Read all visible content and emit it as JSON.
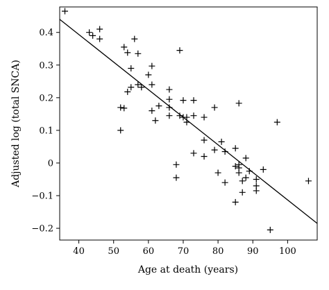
{
  "chart_data": {
    "type": "scatter",
    "title": "",
    "xlabel": "Age at death (years)",
    "ylabel": "Adjusted log (total SNCA)",
    "xlim": [
      34.5,
      108.5
    ],
    "ylim": [
      -0.236,
      0.478
    ],
    "x_ticks": [
      40,
      50,
      60,
      70,
      80,
      90,
      100
    ],
    "y_ticks": [
      -0.2,
      -0.1,
      0,
      0.1,
      0.2,
      0.3,
      0.4
    ],
    "y_tick_labels": [
      "−0.2",
      "−0.1",
      "0",
      "0.1",
      "0.2",
      "0.3",
      "0.4"
    ],
    "marker": "plus",
    "grid": false,
    "points": [
      {
        "x": 36,
        "y": 0.465
      },
      {
        "x": 43,
        "y": 0.4
      },
      {
        "x": 44,
        "y": 0.39
      },
      {
        "x": 46,
        "y": 0.41
      },
      {
        "x": 46,
        "y": 0.38
      },
      {
        "x": 52,
        "y": 0.17
      },
      {
        "x": 52,
        "y": 0.1
      },
      {
        "x": 53,
        "y": 0.355
      },
      {
        "x": 53,
        "y": 0.168
      },
      {
        "x": 54,
        "y": 0.338
      },
      {
        "x": 54,
        "y": 0.218
      },
      {
        "x": 55,
        "y": 0.29
      },
      {
        "x": 55,
        "y": 0.232
      },
      {
        "x": 56,
        "y": 0.38
      },
      {
        "x": 57,
        "y": 0.335
      },
      {
        "x": 57,
        "y": 0.24
      },
      {
        "x": 58,
        "y": 0.232
      },
      {
        "x": 60,
        "y": 0.27
      },
      {
        "x": 61,
        "y": 0.297
      },
      {
        "x": 61,
        "y": 0.24
      },
      {
        "x": 61,
        "y": 0.16
      },
      {
        "x": 62,
        "y": 0.13
      },
      {
        "x": 63,
        "y": 0.175
      },
      {
        "x": 66,
        "y": 0.225
      },
      {
        "x": 66,
        "y": 0.195
      },
      {
        "x": 66,
        "y": 0.17
      },
      {
        "x": 66,
        "y": 0.145
      },
      {
        "x": 68,
        "y": -0.005
      },
      {
        "x": 68,
        "y": -0.045
      },
      {
        "x": 69,
        "y": 0.345
      },
      {
        "x": 69,
        "y": 0.145
      },
      {
        "x": 70,
        "y": 0.192
      },
      {
        "x": 70,
        "y": 0.14
      },
      {
        "x": 71,
        "y": 0.14
      },
      {
        "x": 71,
        "y": 0.125
      },
      {
        "x": 73,
        "y": 0.192
      },
      {
        "x": 73,
        "y": 0.145
      },
      {
        "x": 73,
        "y": 0.03
      },
      {
        "x": 76,
        "y": 0.14
      },
      {
        "x": 76,
        "y": 0.07
      },
      {
        "x": 76,
        "y": 0.02
      },
      {
        "x": 79,
        "y": 0.17
      },
      {
        "x": 79,
        "y": 0.04
      },
      {
        "x": 80,
        "y": -0.03
      },
      {
        "x": 81,
        "y": 0.065
      },
      {
        "x": 82,
        "y": 0.035
      },
      {
        "x": 82,
        "y": -0.06
      },
      {
        "x": 85,
        "y": 0.045
      },
      {
        "x": 85,
        "y": -0.01
      },
      {
        "x": 85,
        "y": -0.12
      },
      {
        "x": 86,
        "y": 0.183
      },
      {
        "x": 86,
        "y": -0.005
      },
      {
        "x": 86,
        "y": -0.015
      },
      {
        "x": 86,
        "y": -0.03
      },
      {
        "x": 87,
        "y": -0.055
      },
      {
        "x": 87,
        "y": -0.09
      },
      {
        "x": 88,
        "y": 0.015
      },
      {
        "x": 88,
        "y": -0.045
      },
      {
        "x": 89,
        "y": -0.025
      },
      {
        "x": 91,
        "y": -0.05
      },
      {
        "x": 91,
        "y": -0.07
      },
      {
        "x": 91,
        "y": -0.085
      },
      {
        "x": 93,
        "y": -0.02
      },
      {
        "x": 95,
        "y": -0.205
      },
      {
        "x": 97,
        "y": 0.125
      },
      {
        "x": 106,
        "y": -0.055
      }
    ],
    "fit_line": {
      "x1": 34.5,
      "y1": 0.44,
      "x2": 108.5,
      "y2": -0.185
    }
  }
}
